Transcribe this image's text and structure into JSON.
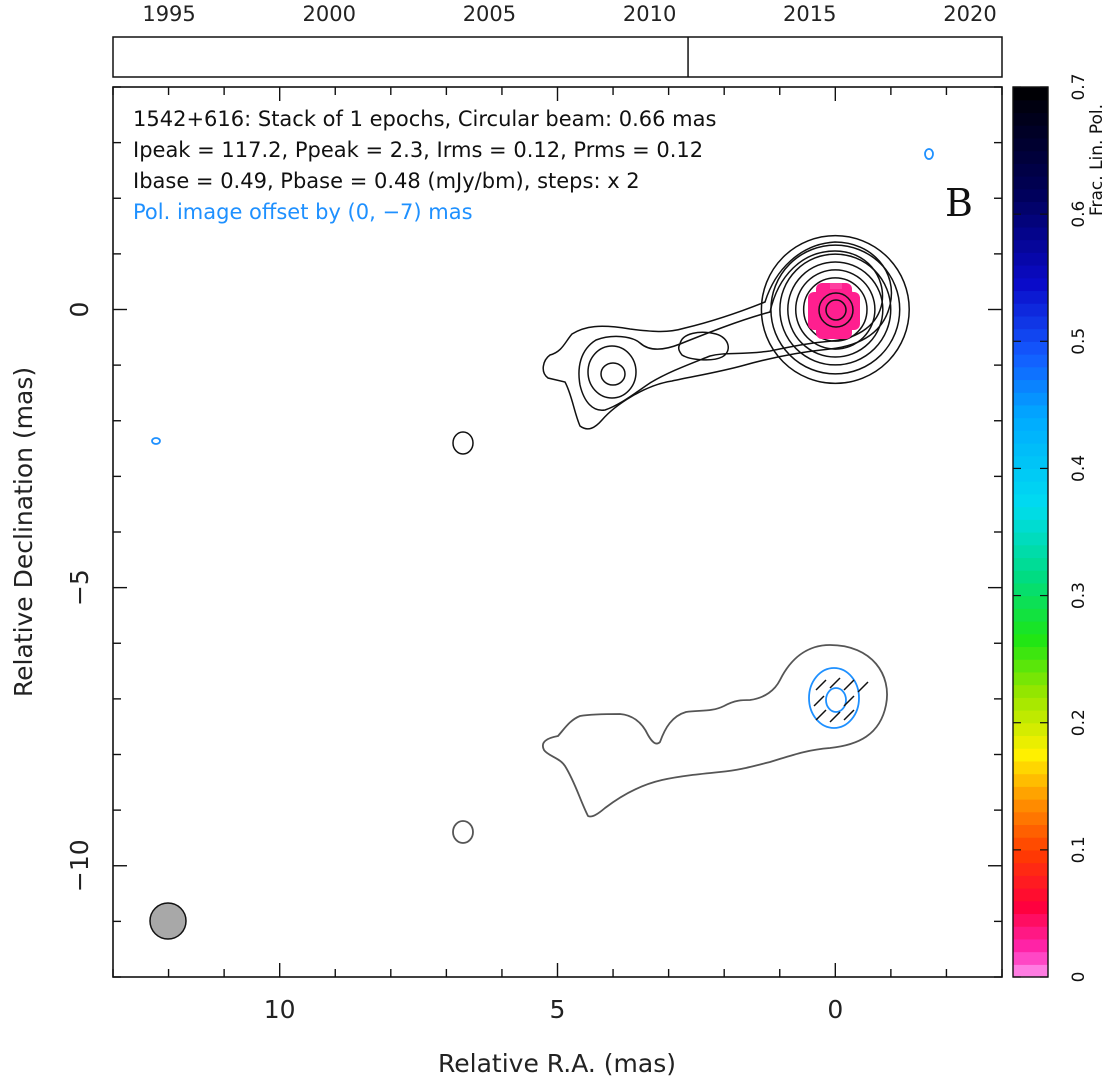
{
  "chart_data": {
    "type": "contour",
    "source": "1542+616",
    "panel_letter": "B",
    "info_lines": [
      "1542+616: Stack of 1 epochs, Circular beam: 0.66 mas",
      "Ipeak = 117.2, Ppeak = 2.3, Irms = 0.12, Prms = 0.12",
      "Ibase = 0.49, Pbase = 0.48 (mJy/bm), steps: x 2"
    ],
    "pol_offset_note": "Pol. image offset by (0, −7) mas",
    "xlabel": "Relative R.A. (mas)",
    "ylabel": "Relative Declination (mas)",
    "xlim": [
      13,
      -3
    ],
    "ylim": [
      -12,
      4
    ],
    "x_ticks": [
      10,
      5,
      0
    ],
    "x_tick_labels": [
      "10",
      "5",
      "0"
    ],
    "y_ticks": [
      0,
      -5,
      -10
    ],
    "y_tick_labels": [
      "0",
      "−5",
      "−10"
    ],
    "timeline": {
      "years": [
        "1995",
        "2000",
        "2005",
        "2010",
        "2015",
        "2020"
      ],
      "range": [
        1993.25,
        2021
      ],
      "epochs": [
        2011.2
      ]
    },
    "colorbar": {
      "label": "Frac. Lin. Pol.",
      "range": [
        0,
        0.7
      ],
      "tick_labels": [
        "0",
        "0.1",
        "0.2",
        "0.3",
        "0.4",
        "0.5",
        "0.6",
        "0.7"
      ]
    },
    "beam": {
      "x": 12,
      "y": -11,
      "diameter": 0.66
    },
    "stokes_i_peak_contours": [
      {
        "x": 0,
        "y": 0,
        "r": [
          0.3,
          0.45,
          0.6,
          0.75,
          0.9,
          1.05,
          1.22,
          1.4
        ]
      }
    ],
    "features": [
      {
        "name": "inner knot",
        "x": 4.0,
        "y": -1.15
      },
      {
        "name": "isolated blob",
        "x": 6.7,
        "y": -2.4
      },
      {
        "name": "polarization peak",
        "x": 0,
        "y": 0
      }
    ],
    "colors": {
      "axes": "#111111",
      "contour_I": "#111111",
      "contour_pol_total": "#555555",
      "contour_pol": "#1e90ff",
      "fpol_peak": "#ff1f8f",
      "beam": "#a8a8a8",
      "pol_note": "#1e90ff"
    }
  }
}
